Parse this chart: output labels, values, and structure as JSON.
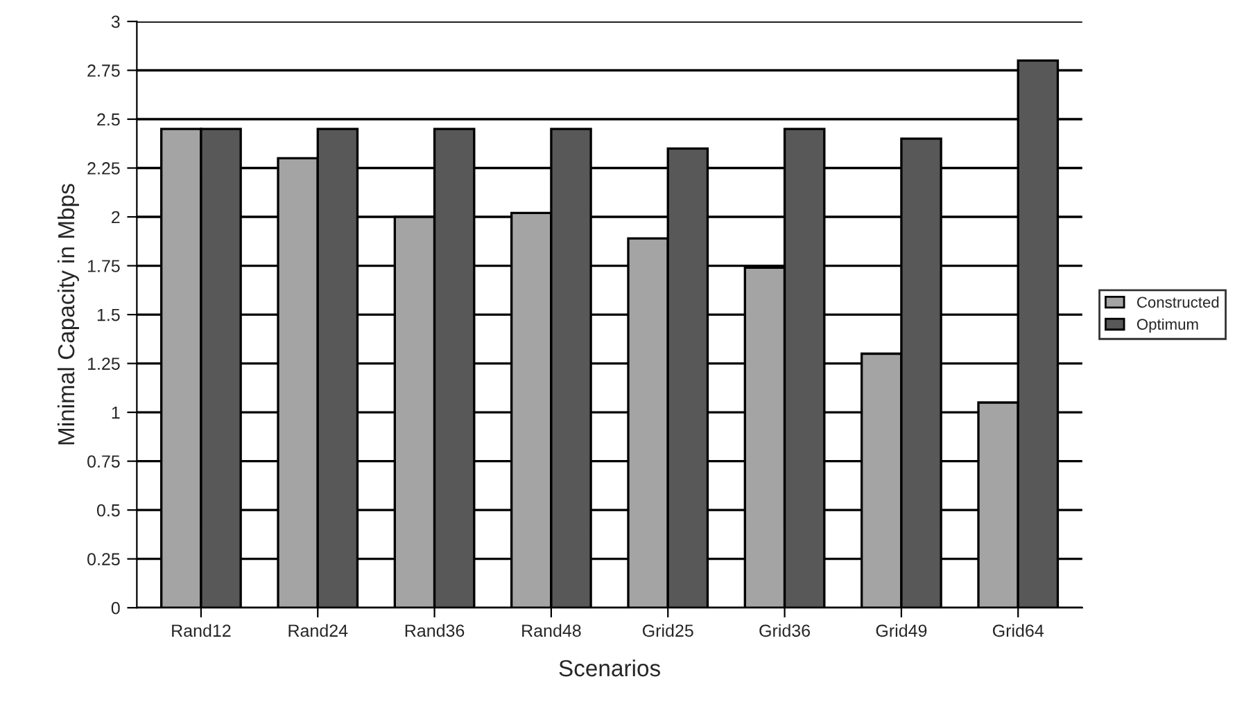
{
  "chart_data": {
    "type": "bar",
    "xlabel": "Scenarios",
    "ylabel": "Minimal Capacity in Mbps",
    "categories": [
      "Rand12",
      "Rand24",
      "Rand36",
      "Rand48",
      "Grid25",
      "Grid36",
      "Grid49",
      "Grid64"
    ],
    "series": [
      {
        "name": "Constructed",
        "color": "#a4a4a4",
        "values": [
          2.45,
          2.3,
          2.0,
          2.02,
          1.89,
          1.74,
          1.3,
          1.05
        ]
      },
      {
        "name": "Optimum",
        "color": "#585858",
        "values": [
          2.45,
          2.45,
          2.45,
          2.45,
          2.35,
          2.45,
          2.4,
          2.8
        ]
      }
    ],
    "ylim": [
      0,
      3
    ],
    "yticks": [
      0,
      {
        "value": 0.25,
        "label": "0.25"
      },
      {
        "value": 0.5,
        "label": "0.5"
      },
      {
        "value": 0.75,
        "label": "0.75"
      },
      1,
      {
        "value": 1.25,
        "label": "1.25"
      },
      {
        "value": 1.5,
        "label": "1.5"
      },
      {
        "value": 1.75,
        "label": "1.75"
      },
      2,
      {
        "value": 2.25,
        "label": "2.25"
      },
      {
        "value": 2.5,
        "label": "2.5"
      },
      {
        "value": 2.75,
        "label": "2.75"
      },
      3
    ],
    "grid": "y",
    "legend": "right"
  }
}
